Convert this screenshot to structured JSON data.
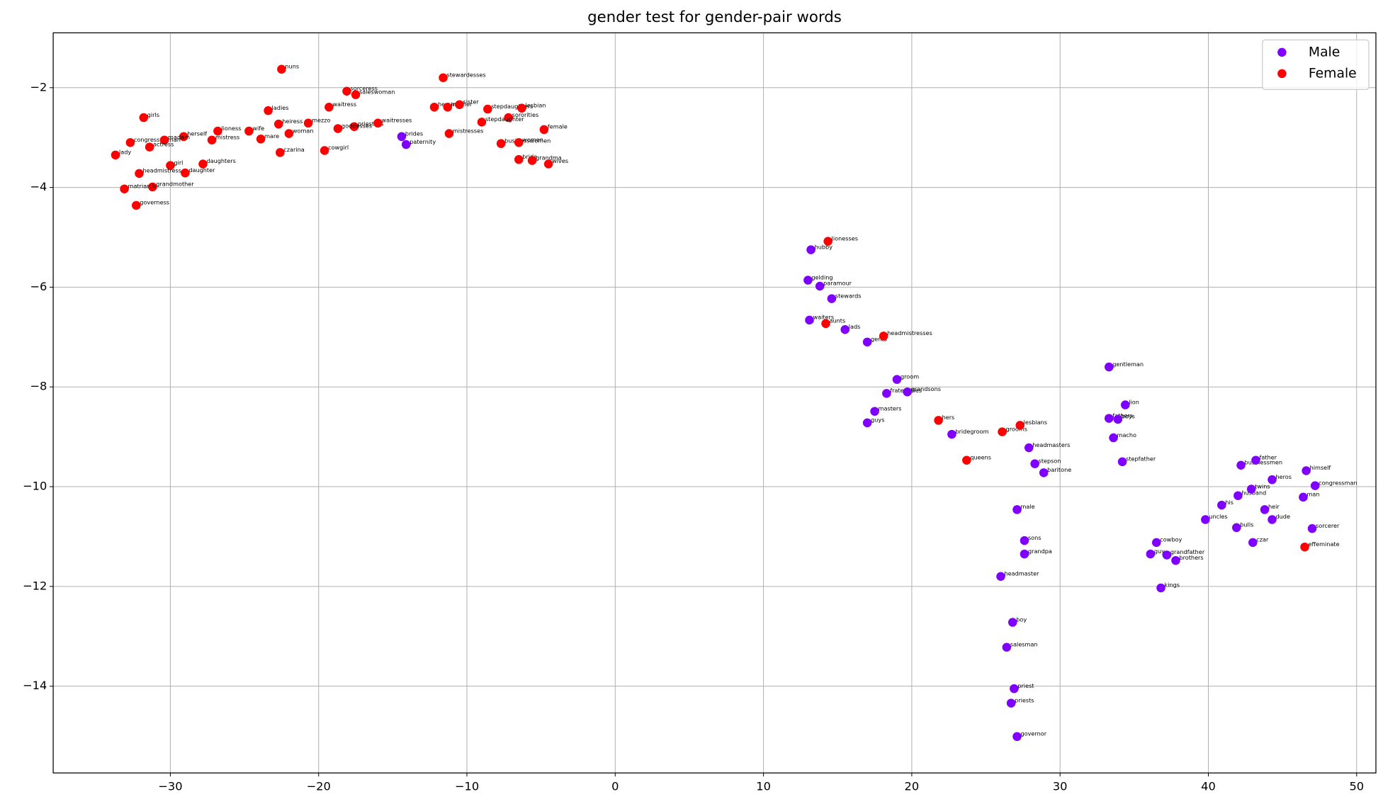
{
  "chart_data": {
    "type": "scatter",
    "title": "gender test for gender-pair words",
    "xlim": [
      -37.9,
      51.3
    ],
    "ylim": [
      -15.74,
      -0.9
    ],
    "xticks": [
      {
        "value": -30,
        "label": "−30"
      },
      {
        "value": -20,
        "label": "−20"
      },
      {
        "value": -10,
        "label": "−10"
      },
      0,
      10,
      20,
      30,
      40,
      50
    ],
    "yticks": [
      {
        "value": -14,
        "label": "−14"
      },
      {
        "value": -12,
        "label": "−12"
      },
      {
        "value": -10,
        "label": "−10"
      },
      {
        "value": -8,
        "label": "−8"
      },
      {
        "value": -6,
        "label": "−6"
      },
      {
        "value": -4,
        "label": "−4"
      },
      {
        "value": -2,
        "label": "−2"
      }
    ],
    "grid": true,
    "legend": "upper right",
    "series": [
      {
        "name": "Male",
        "color": "#7f00ff",
        "labels": [
          "brides",
          "paternity",
          "hubby",
          "gelding",
          "paramour",
          "stewards",
          "waiters",
          "lads",
          "gents",
          "groom",
          "fraternities",
          "grandsons",
          "masters",
          "guys",
          "bridegroom",
          "headmasters",
          "stepson",
          "baritone",
          "male",
          "sons",
          "grandpa",
          "headmaster",
          "boy",
          "salesman",
          "priest",
          "priests",
          "governor",
          "gentleman",
          "lion",
          "fathers",
          "boys",
          "macho",
          "stepfather",
          "cowboy",
          "guy",
          "grandfather",
          "brothers",
          "kings",
          "uncles",
          "his",
          "husband",
          "bulls",
          "businessmen",
          "father",
          "twins",
          "heros",
          "heir",
          "dude",
          "czar",
          "himself",
          "congressman",
          "man",
          "sorcerer"
        ],
        "x": [
          -14.4,
          -14.1,
          13.2,
          13.0,
          13.8,
          14.6,
          13.1,
          15.5,
          17.0,
          19.0,
          18.3,
          19.7,
          17.5,
          17.0,
          22.7,
          27.9,
          28.3,
          28.9,
          27.1,
          27.6,
          27.6,
          26.0,
          26.8,
          26.4,
          26.9,
          26.7,
          27.1,
          33.3,
          34.4,
          33.3,
          33.9,
          33.6,
          34.2,
          36.5,
          36.1,
          37.2,
          37.8,
          36.8,
          39.8,
          40.9,
          42.0,
          41.9,
          42.2,
          43.2,
          42.9,
          44.3,
          43.8,
          44.3,
          43.0,
          46.6,
          47.2,
          46.4,
          47.0
        ],
        "values": [
          -2.98,
          -3.14,
          -5.25,
          -5.86,
          -5.98,
          -6.23,
          -6.66,
          -6.85,
          -7.1,
          -7.85,
          -8.13,
          -8.1,
          -8.49,
          -8.72,
          -8.95,
          -9.22,
          -9.54,
          -9.72,
          -10.46,
          -11.08,
          -11.35,
          -11.8,
          -12.72,
          -13.22,
          -14.05,
          -14.34,
          -15.01,
          -7.6,
          -8.36,
          -8.63,
          -8.65,
          -9.02,
          -9.5,
          -11.12,
          -11.35,
          -11.37,
          -11.48,
          -12.03,
          -10.66,
          -10.37,
          -10.18,
          -10.82,
          -9.57,
          -9.47,
          -10.05,
          -9.86,
          -10.46,
          -10.66,
          -11.12,
          -9.68,
          -9.98,
          -10.21,
          -10.84
        ]
      },
      {
        "name": "Female",
        "color": "#ff0000",
        "labels": [
          "nuns",
          "stewardesses",
          "sorceress",
          "saleswoman",
          "girls",
          "ladies",
          "waitress",
          "heiress",
          "mezzo",
          "woman",
          "priestess",
          "goddesses",
          "waitresses",
          "herself",
          "lioness",
          "mistress",
          "wife",
          "mare",
          "congresswoman",
          "madam",
          "actress",
          "lady",
          "girl",
          "daughters",
          "daughter",
          "headmistress",
          "grandmother",
          "matriarch",
          "governess",
          "czarina",
          "cowgirl",
          "heroines",
          "mother",
          "sister",
          "stepdaughters",
          "lesbian",
          "sororities",
          "stepdaughter",
          "mistresses",
          "female",
          "businesswomen",
          "women",
          "bride",
          "grandma",
          "wives",
          "lionesses",
          "aunts",
          "headmistresses",
          "hers",
          "grooms",
          "lesbians",
          "queens",
          "effeminate"
        ],
        "x": [
          -22.5,
          -11.6,
          -18.1,
          -17.5,
          -31.8,
          -23.4,
          -19.3,
          -22.7,
          -20.7,
          -22.0,
          -17.6,
          -18.7,
          -16.0,
          -29.1,
          -26.8,
          -27.2,
          -24.7,
          -23.9,
          -32.7,
          -30.4,
          -31.4,
          -33.7,
          -30.0,
          -27.8,
          -29.0,
          -32.1,
          -31.2,
          -33.1,
          -32.3,
          -22.6,
          -19.6,
          -12.2,
          -11.3,
          -10.5,
          -8.6,
          -6.3,
          -7.2,
          -9.0,
          -11.2,
          -4.8,
          -7.7,
          -6.5,
          -6.5,
          -5.6,
          -4.5,
          14.35,
          14.2,
          18.1,
          21.8,
          26.1,
          27.3,
          23.7,
          46.5
        ],
        "values": [
          -1.63,
          -1.8,
          -2.07,
          -2.14,
          -2.6,
          -2.46,
          -2.39,
          -2.73,
          -2.71,
          -2.92,
          -2.78,
          -2.82,
          -2.71,
          -2.98,
          -2.87,
          -3.05,
          -2.87,
          -3.03,
          -3.1,
          -3.05,
          -3.19,
          -3.35,
          -3.56,
          -3.53,
          -3.71,
          -3.72,
          -3.99,
          -4.03,
          -4.36,
          -3.3,
          -3.26,
          -2.39,
          -2.39,
          -2.34,
          -2.43,
          -2.41,
          -2.6,
          -2.69,
          -2.92,
          -2.84,
          -3.12,
          -3.1,
          -3.44,
          -3.46,
          -3.53,
          -5.08,
          -6.73,
          -6.98,
          -8.67,
          -8.9,
          -8.77,
          -9.47,
          -11.21
        ]
      }
    ]
  }
}
